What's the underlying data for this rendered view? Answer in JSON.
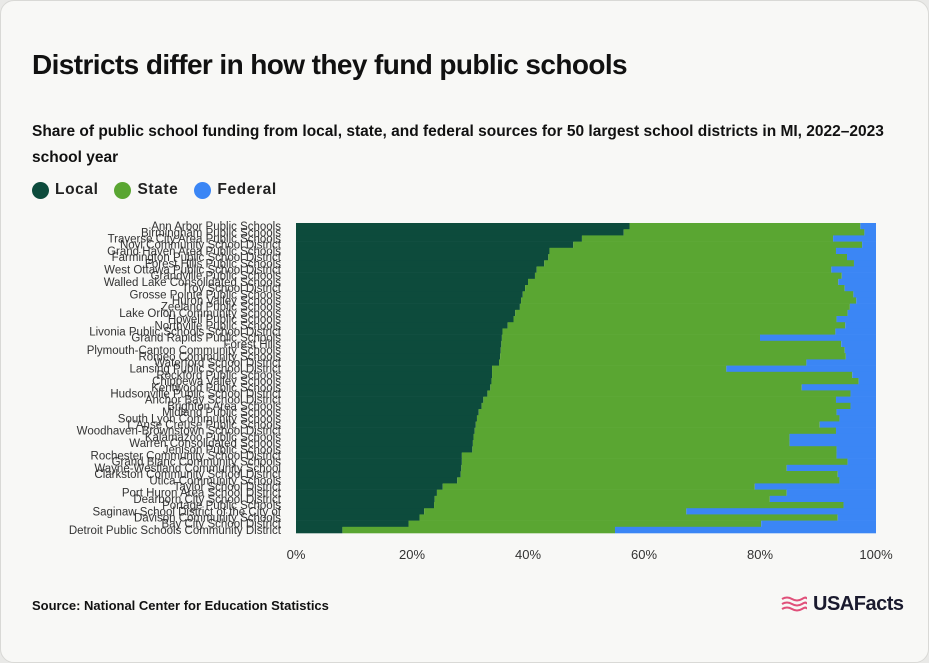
{
  "title": "Districts differ in how they fund public schools",
  "subtitle": "Share of public school funding from local, state, and federal sources for 50 largest school districts in MI, 2022–2023 school year",
  "legend": [
    {
      "label": "Local",
      "color": "#0d4b3c"
    },
    {
      "label": "State",
      "color": "#5aa632"
    },
    {
      "label": "Federal",
      "color": "#3b86f5"
    }
  ],
  "source": "Source: National Center for Education Statistics",
  "brand": "USAFacts",
  "chart_data": {
    "type": "bar",
    "orientation": "horizontal",
    "stacked": true,
    "xlim": [
      0,
      100
    ],
    "x_ticks": [
      "0%",
      "20%",
      "40%",
      "60%",
      "80%",
      "100%"
    ],
    "colors": {
      "Local": "#0d4b3c",
      "State": "#5aa632",
      "Federal": "#3b86f5"
    },
    "categories": [
      "Ann Arbor Public Schools",
      "Birmingham Public Schools",
      "Traverse City Area Public Schools",
      "Novi Community School District",
      "Grand Haven Area Public Schools",
      "Farmington Public School District",
      "Forest Hills Public Schools",
      "West Ottawa Public School District",
      "Grandville Public Schools",
      "Walled Lake Consolidated Schools",
      "Troy School District",
      "Grosse Pointe Public Schools",
      "Huron Valley Schools",
      "Zeeland Public Schools",
      "Lake Orion Community Schools",
      "Howell Public Schools",
      "Northville Public Schools",
      "Livonia Public Schools School District",
      "Grand Rapids Public Schools",
      "Forest Hills",
      "Plymouth-Canton Community Schools",
      "Romeo Community Schools",
      "Waterford School District",
      "Lansing Public School District",
      "Rockford Public Schools",
      "Chippewa Valley Schools",
      "Kentwood Public Schools",
      "Hudsonville Public School District",
      "Anchor Bay School District",
      "Brighton Area Schools",
      "Midland Public Schools",
      "South Lyon Community Schools",
      "L'Anse Creuse Public Schools",
      "Woodhaven-Brownstown School District",
      "Kalamazoo Public Schools",
      "Warren Consolidated Schools",
      "Jenison Public Schools",
      "Rochester Community School District",
      "Grand Blanc Community Schools",
      "Wayne-Westland Community School",
      "Clarkston Community School District",
      "Utica Community Schools",
      "Taylor School District",
      "Port Huron Area School District",
      "Dearborn City School District",
      "Portage Public Schools",
      "Saginaw School District of the City of",
      "Davison Community Schools",
      "Bay City School District",
      "Detroit Public Schools Community District"
    ],
    "series": [
      {
        "name": "Local",
        "values": [
          57.5,
          56.5,
          49.3,
          47.8,
          43.7,
          43.5,
          42.8,
          41.5,
          41.2,
          40.0,
          39.5,
          39.1,
          38.8,
          38.6,
          37.8,
          37.5,
          36.5,
          35.6,
          35.5,
          35.4,
          35.3,
          35.2,
          35.0,
          33.8,
          33.8,
          33.7,
          33.5,
          33.0,
          32.3,
          32.0,
          31.5,
          31.2,
          31.0,
          30.8,
          30.6,
          30.5,
          30.4,
          28.6,
          28.6,
          28.5,
          28.4,
          27.8,
          25.3,
          24.3,
          23.9,
          23.8,
          22.1,
          21.3,
          19.4,
          8.0
        ]
      },
      {
        "name": "State",
        "values": [
          39.8,
          41.5,
          43.3,
          49.8,
          49.4,
          51.5,
          53.4,
          50.8,
          52.9,
          53.5,
          55.1,
          57.0,
          57.8,
          56.9,
          57.3,
          55.7,
          58.2,
          57.4,
          44.5,
          58.6,
          59.3,
          59.6,
          53.0,
          40.4,
          62.1,
          63.3,
          53.7,
          62.6,
          60.8,
          63.6,
          61.7,
          62.5,
          59.3,
          62.3,
          54.5,
          54.6,
          62.8,
          64.6,
          66.5,
          56.1,
          65.0,
          65.9,
          53.8,
          60.3,
          57.8,
          70.6,
          45.2,
          72.1,
          60.8,
          47.0
        ]
      },
      {
        "name": "Federal",
        "values": [
          2.7,
          2.0,
          7.4,
          2.4,
          6.9,
          5.0,
          3.8,
          7.7,
          5.9,
          6.5,
          5.4,
          3.9,
          3.4,
          4.5,
          4.9,
          6.8,
          5.3,
          7.0,
          20.0,
          6.0,
          5.4,
          5.2,
          12.0,
          25.8,
          4.1,
          3.0,
          12.8,
          4.4,
          6.9,
          4.4,
          6.8,
          6.3,
          9.7,
          6.9,
          14.9,
          14.9,
          6.8,
          6.8,
          4.9,
          15.4,
          6.6,
          6.3,
          20.9,
          15.4,
          18.3,
          5.6,
          32.7,
          6.6,
          19.8,
          45.0
        ]
      }
    ]
  }
}
